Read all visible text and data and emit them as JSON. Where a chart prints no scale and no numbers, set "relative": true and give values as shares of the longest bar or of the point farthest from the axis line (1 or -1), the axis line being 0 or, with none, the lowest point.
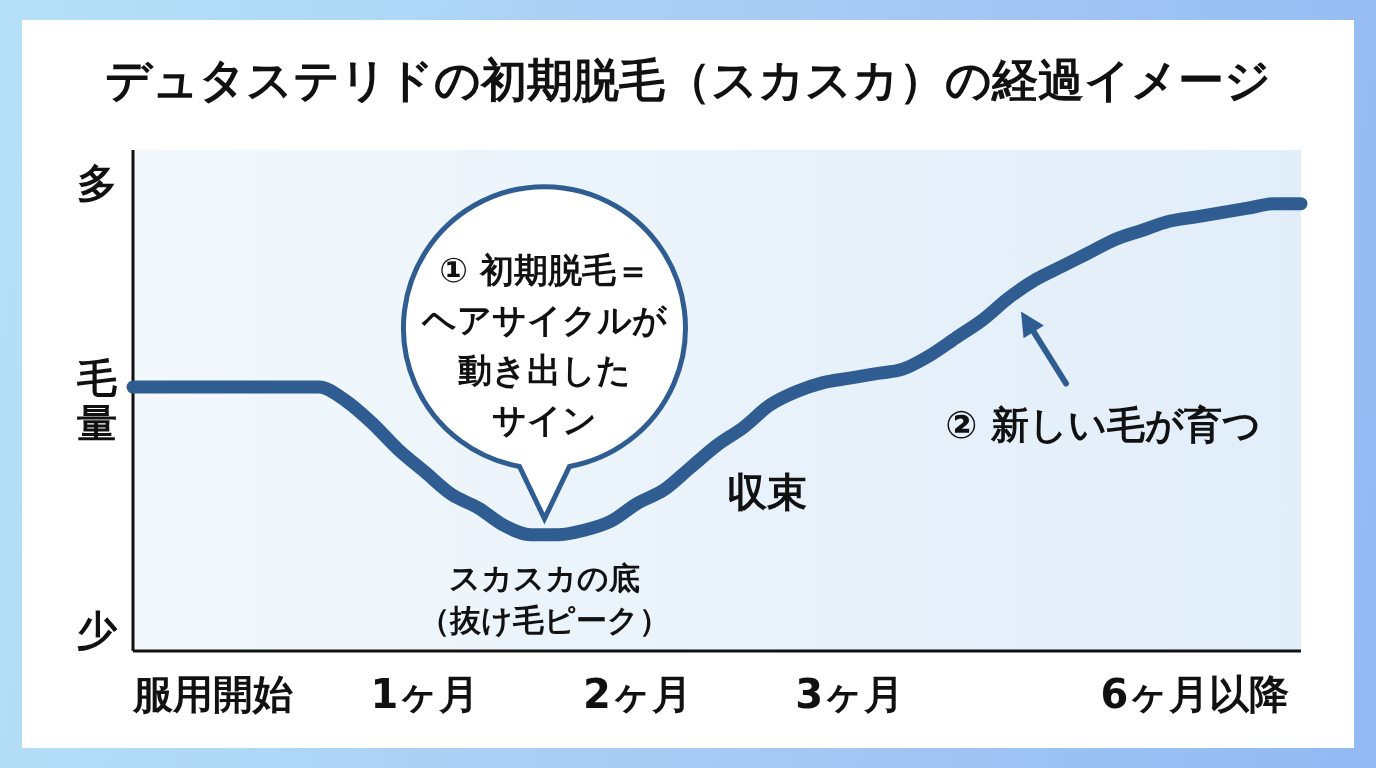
{
  "chart_data": {
    "type": "line",
    "title": "デュタステリドの初期脱毛（スカスカ）の経過イメージ",
    "ylabel": "毛量",
    "relative": true,
    "categories": [
      null,
      null,
      null,
      "服用開始",
      null,
      null,
      null,
      null,
      null,
      null,
      null,
      "1ヶ月",
      null,
      null,
      null,
      null,
      null,
      null,
      null,
      "2ヶ月",
      null,
      null,
      null,
      null,
      null,
      null,
      null,
      "3ヶ月",
      null,
      null,
      null,
      null,
      null,
      null,
      null,
      null,
      null,
      null,
      null,
      null,
      "6ヶ月以降",
      null,
      null,
      null,
      null
    ],
    "series": [
      {
        "color": "#2f5d91",
        "values": [
          0.59,
          0.59,
          0.59,
          0.59,
          0.59,
          0.59,
          0.59,
          0.59,
          0.56,
          0.51,
          0.45,
          0.4,
          0.35,
          0.32,
          0.28,
          0.26,
          0.26,
          0.27,
          0.29,
          0.33,
          0.36,
          0.41,
          0.46,
          0.5,
          0.55,
          0.58,
          0.6,
          0.61,
          0.62,
          0.63,
          0.66,
          0.7,
          0.74,
          0.79,
          0.83,
          0.86,
          0.89,
          0.92,
          0.94,
          0.96,
          0.97,
          0.98,
          0.99,
          1.0,
          1.0
        ]
      }
    ],
    "annotations": [
      "多",
      "少",
      "① 初期脱毛＝ヘアサイクルが動き出したサイン",
      "スカスカの底（抜け毛ピーク）",
      "収束",
      "② 新しい毛が育つ"
    ]
  }
}
